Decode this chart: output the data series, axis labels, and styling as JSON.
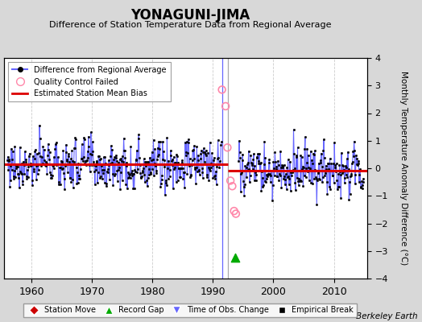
{
  "title": "YONAGUNI-JIMA",
  "subtitle": "Difference of Station Temperature Data from Regional Average",
  "ylabel": "Monthly Temperature Anomaly Difference (°C)",
  "credit": "Berkeley Earth",
  "xlim": [
    1955.5,
    2015.5
  ],
  "ylim": [
    -4,
    4
  ],
  "yticks": [
    -4,
    -3,
    -2,
    -1,
    0,
    1,
    2,
    3,
    4
  ],
  "xticks": [
    1960,
    1970,
    1980,
    1990,
    2000,
    2010
  ],
  "bias_before": 0.15,
  "bias_after": -0.08,
  "break_year": 1992.5,
  "gap_start": 1991.5,
  "gap_end": 1994.2,
  "obs_change_x": 1991.5,
  "record_gap_x": 1993.7,
  "record_gap_y": -3.25,
  "qc_failed_x": [
    1991.5,
    1992.1,
    1992.4,
    1992.9,
    1993.2,
    1993.5,
    1993.8
  ],
  "qc_failed_y": [
    2.85,
    2.25,
    0.75,
    -0.45,
    -0.65,
    -1.55,
    -1.65
  ],
  "bg_color": "#d8d8d8",
  "plot_bg_color": "#ffffff",
  "line_color": "#6666ff",
  "dot_color": "#000000",
  "bias_color": "#dd0000",
  "grid_color": "#cccccc",
  "qc_color": "#ff88aa",
  "seed": 77
}
